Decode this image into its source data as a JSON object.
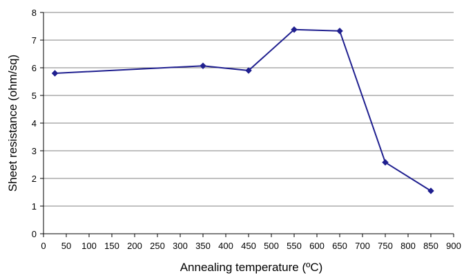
{
  "chart_data": {
    "type": "line",
    "xlabel": "Annealing temperature (ºC)",
    "ylabel": "Sheet resistance (ohm/sq)",
    "xlim": [
      0,
      900
    ],
    "ylim": [
      0,
      8
    ],
    "xticks": [
      0,
      50,
      100,
      150,
      200,
      250,
      300,
      350,
      400,
      450,
      500,
      550,
      600,
      650,
      700,
      750,
      800,
      850,
      900
    ],
    "yticks": [
      0,
      1,
      2,
      3,
      4,
      5,
      6,
      7,
      8
    ],
    "grid": "horizontal",
    "legend": "none",
    "series": [
      {
        "x": [
          25,
          350,
          450,
          550,
          650,
          750,
          850
        ],
        "y": [
          5.8,
          6.07,
          5.9,
          7.38,
          7.33,
          2.58,
          1.55
        ],
        "color": "#1f1f8f",
        "marker": "diamond"
      }
    ]
  }
}
